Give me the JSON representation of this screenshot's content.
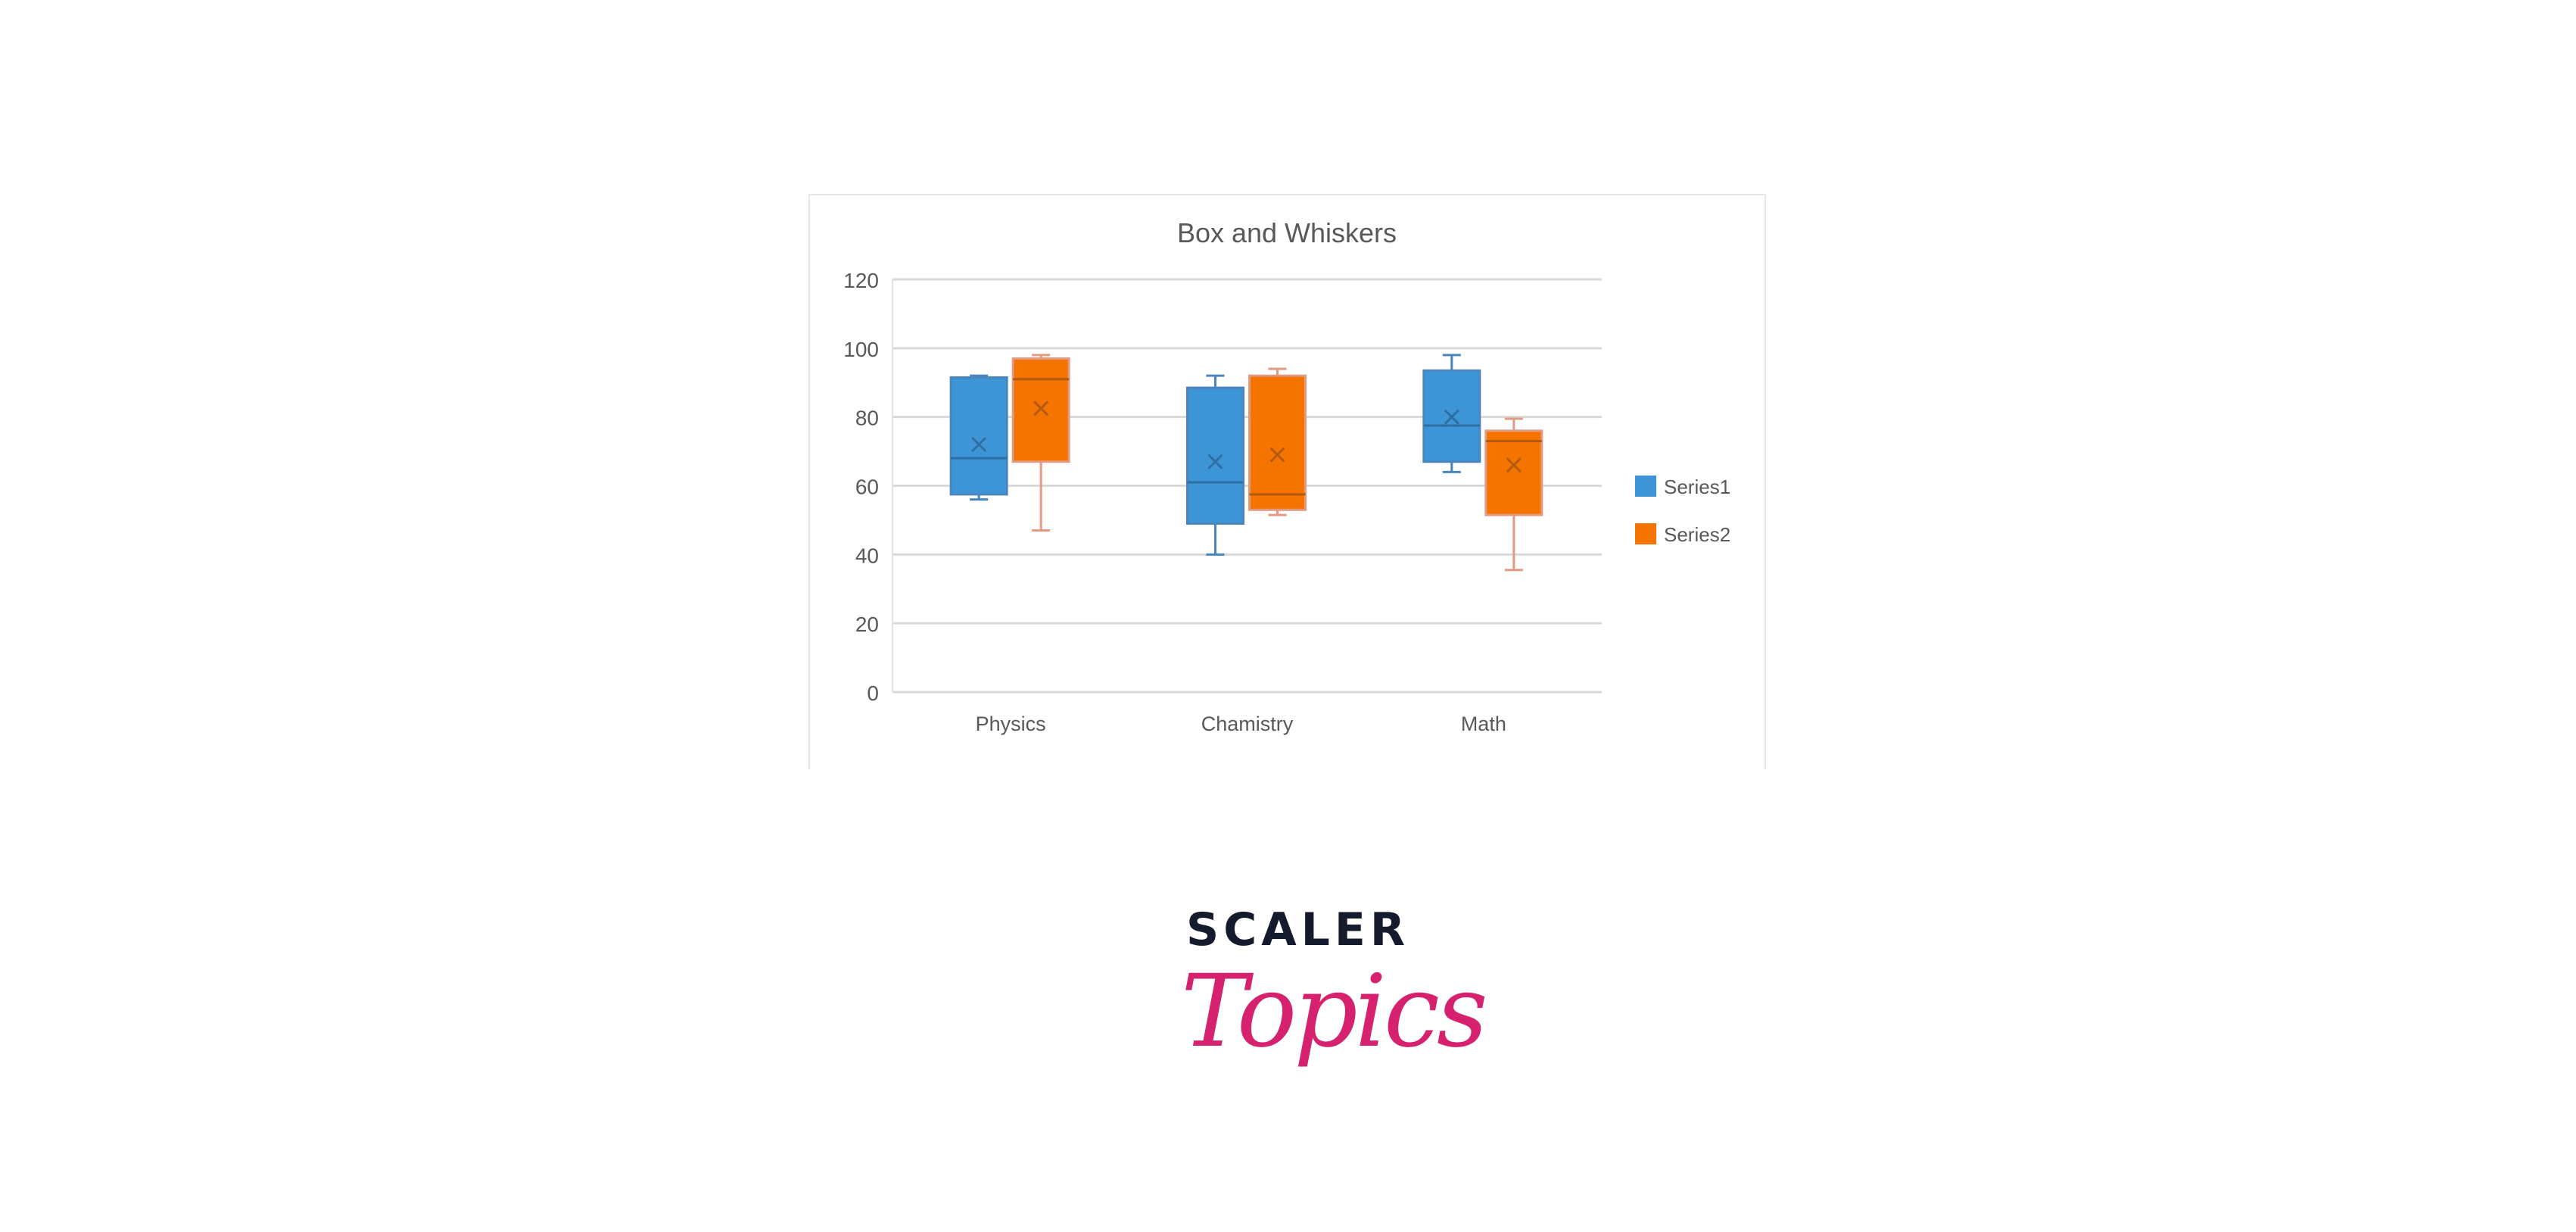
{
  "chart_data": {
    "type": "box",
    "title": "Box and Whiskers",
    "categories": [
      "Physics",
      "Chamistry",
      "Math"
    ],
    "ylim": [
      0,
      120
    ],
    "yticks": [
      "0",
      "20",
      "40",
      "60",
      "80",
      "100",
      "120"
    ],
    "grid": true,
    "legend_position": "right",
    "series": [
      {
        "name": "Series1",
        "color": "#3e95d6",
        "whisker_color": "#4a86bd",
        "boxes": [
          {
            "min": 56,
            "q1": 57.5,
            "median": 68,
            "q3": 91.5,
            "max": 92,
            "mean": 72
          },
          {
            "min": 40,
            "q1": 49,
            "median": 61,
            "q3": 88.5,
            "max": 92,
            "mean": 67
          },
          {
            "min": 64,
            "q1": 67,
            "median": 77.5,
            "q3": 93.5,
            "max": 98,
            "mean": 80
          }
        ]
      },
      {
        "name": "Series2",
        "color": "#f57400",
        "whisker_color": "#e39a82",
        "boxes": [
          {
            "min": 47,
            "q1": 67,
            "median": 91,
            "q3": 97,
            "max": 98,
            "mean": 82.5
          },
          {
            "min": 51.5,
            "q1": 53,
            "median": 57.5,
            "q3": 92,
            "max": 94,
            "mean": 69
          },
          {
            "min": 35.5,
            "q1": 51.5,
            "median": 73,
            "q3": 76,
            "max": 79.5,
            "mean": 66
          }
        ]
      }
    ]
  },
  "logo": {
    "word": "SCALER",
    "script": "Topics",
    "word_color": "#141b2d",
    "script_color": "#d6226e"
  }
}
